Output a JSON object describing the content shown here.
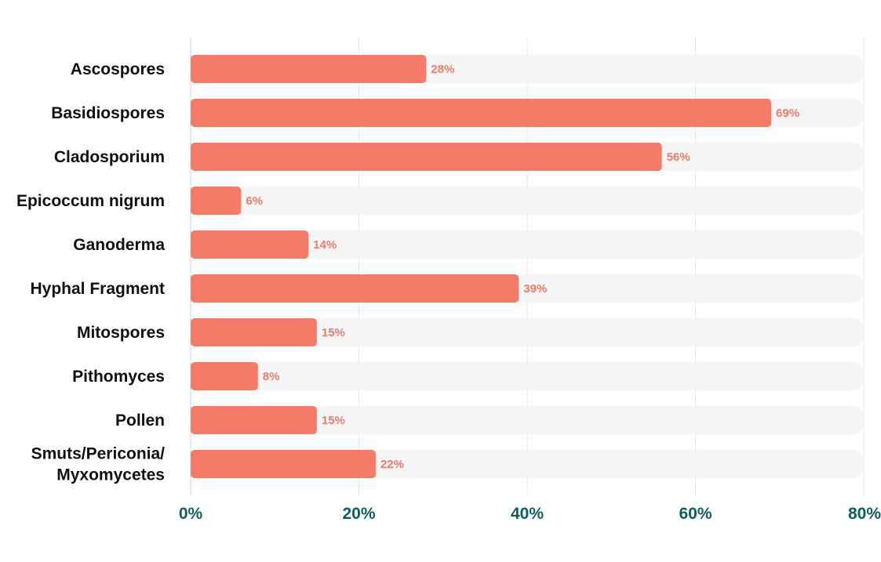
{
  "chart_data": {
    "type": "bar",
    "orientation": "horizontal",
    "categories": [
      [
        "Ascospores"
      ],
      [
        "Basidiospores"
      ],
      [
        "Cladosporium"
      ],
      [
        "Epicoccum nigrum"
      ],
      [
        "Ganoderma"
      ],
      [
        "Hyphal Fragment"
      ],
      [
        "Mitospores"
      ],
      [
        "Pithomyces"
      ],
      [
        "Pollen"
      ],
      [
        "Smuts/Periconia/",
        "Myxomycetes"
      ]
    ],
    "values": [
      28,
      69,
      56,
      6,
      14,
      39,
      15,
      8,
      15,
      22
    ],
    "value_labels": [
      "28%",
      "69%",
      "56%",
      "6%",
      "14%",
      "39%",
      "15%",
      "8%",
      "15%",
      "22%"
    ],
    "xlim": [
      0,
      80
    ],
    "xticks": [
      0,
      20,
      40,
      60,
      80
    ],
    "xtick_labels": [
      "0%",
      "20%",
      "40%",
      "60%",
      "80%"
    ],
    "grid": "vertical",
    "title": "",
    "xlabel": "",
    "ylabel": "",
    "colors": {
      "bar": "#F47B67",
      "track": "#F5F5F5",
      "value_label": "#F47B67",
      "tick_label": "#0E5E63",
      "grid": "#E6E6E6",
      "category_label": "#111111"
    }
  }
}
